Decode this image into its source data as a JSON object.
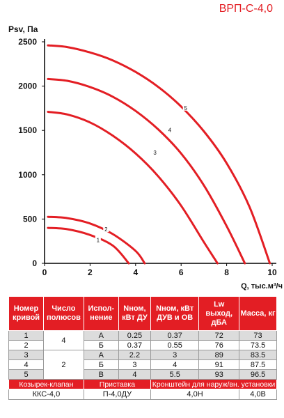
{
  "model": "ВРП-С-4,0",
  "chart_data": {
    "type": "line",
    "ylabel": "Psv, Па",
    "xlabel": "Q, тыс.м³/ч",
    "xlim": [
      0,
      10
    ],
    "ylim": [
      0,
      2500
    ],
    "x_ticks": [
      "0",
      "2",
      "4",
      "6",
      "8",
      "10"
    ],
    "y_ticks": [
      "0",
      "500",
      "1000",
      "1500",
      "2000",
      "2500"
    ],
    "grid": false,
    "color": "#e31e24",
    "series": [
      {
        "name": "1",
        "points": [
          [
            0.15,
            400
          ],
          [
            1.0,
            385
          ],
          [
            2.0,
            320
          ],
          [
            3.0,
            200
          ],
          [
            3.7,
            0
          ]
        ]
      },
      {
        "name": "2",
        "points": [
          [
            0.15,
            525
          ],
          [
            1.0,
            510
          ],
          [
            2.0,
            450
          ],
          [
            3.0,
            330
          ],
          [
            4.0,
            140
          ],
          [
            4.4,
            0
          ]
        ]
      },
      {
        "name": "3",
        "points": [
          [
            0.15,
            1710
          ],
          [
            1.0,
            1680
          ],
          [
            2.0,
            1590
          ],
          [
            3.0,
            1440
          ],
          [
            4.0,
            1240
          ],
          [
            5.0,
            980
          ],
          [
            6.0,
            650
          ],
          [
            7.0,
            240
          ],
          [
            7.6,
            0
          ]
        ]
      },
      {
        "name": "4",
        "points": [
          [
            0.15,
            2080
          ],
          [
            1.0,
            2060
          ],
          [
            2.0,
            1990
          ],
          [
            3.0,
            1880
          ],
          [
            4.0,
            1720
          ],
          [
            5.0,
            1510
          ],
          [
            6.0,
            1240
          ],
          [
            7.0,
            880
          ],
          [
            8.0,
            420
          ],
          [
            8.8,
            0
          ]
        ]
      },
      {
        "name": "5",
        "points": [
          [
            0.15,
            2460
          ],
          [
            1.0,
            2440
          ],
          [
            2.0,
            2380
          ],
          [
            3.0,
            2290
          ],
          [
            4.0,
            2160
          ],
          [
            5.0,
            1990
          ],
          [
            6.0,
            1770
          ],
          [
            7.0,
            1490
          ],
          [
            8.0,
            1130
          ],
          [
            9.0,
            640
          ],
          [
            9.9,
            0
          ]
        ]
      }
    ],
    "curve_labels": [
      {
        "text": "1",
        "x": 2.35,
        "y": 265
      },
      {
        "text": "2",
        "x": 2.7,
        "y": 385
      },
      {
        "text": "3",
        "x": 4.85,
        "y": 1250
      },
      {
        "text": "4",
        "x": 5.5,
        "y": 1505
      },
      {
        "text": "5",
        "x": 6.2,
        "y": 1755
      }
    ]
  },
  "table": {
    "headers": [
      "Номер кривой",
      "Число полюсов",
      "Испол-нение",
      "Nном, кВт ДУ",
      "Nном, кВт ДУВ и ОВ",
      "Lw выход, дБА",
      "Масса, кг"
    ],
    "poles": [
      "4",
      "2"
    ],
    "rows": [
      {
        "curve": "1",
        "exec": "А",
        "n_du": "0.25",
        "n_duv": "0.37",
        "lw": "72",
        "mass": "73"
      },
      {
        "curve": "2",
        "exec": "Б",
        "n_du": "0.37",
        "n_duv": "0.55",
        "lw": "76",
        "mass": "73.5"
      },
      {
        "curve": "3",
        "exec": "А",
        "n_du": "2.2",
        "n_duv": "3",
        "lw": "89",
        "mass": "83.5"
      },
      {
        "curve": "4",
        "exec": "Б",
        "n_du": "3",
        "n_duv": "4",
        "lw": "91",
        "mass": "87.5"
      },
      {
        "curve": "5",
        "exec": "В",
        "n_du": "4",
        "n_duv": "5.5",
        "lw": "93",
        "mass": "96.5"
      }
    ],
    "accessories": {
      "headers": [
        "Козырек-клапан",
        "Приставка",
        "Кронштейн для наруж/вн. установки"
      ],
      "values": [
        "ККС-4,0",
        "П-4,0ДУ",
        "4,0Н",
        "4,0В"
      ]
    }
  }
}
